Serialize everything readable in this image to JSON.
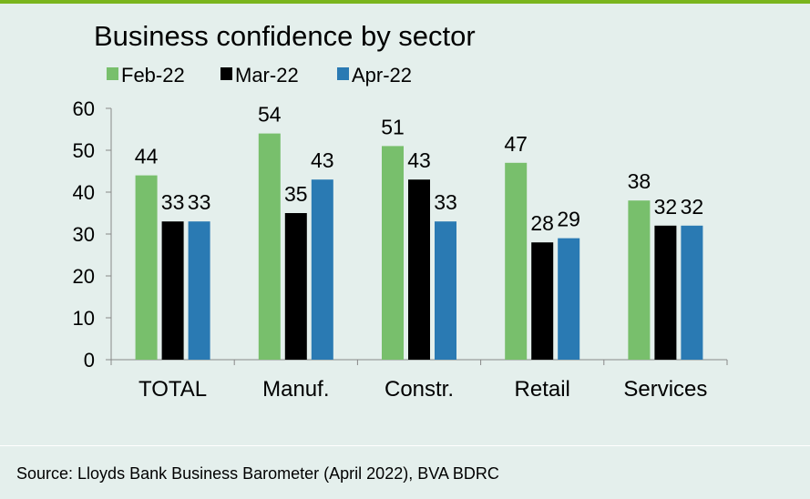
{
  "chart_data": {
    "type": "bar",
    "title": "Business confidence by sector",
    "categories": [
      "TOTAL",
      "Manuf.",
      "Constr.",
      "Retail",
      "Services"
    ],
    "series": [
      {
        "name": "Feb-22",
        "color": "#78bf6c",
        "values": [
          44,
          54,
          51,
          47,
          38
        ]
      },
      {
        "name": "Mar-22",
        "color": "#000000",
        "values": [
          33,
          35,
          43,
          28,
          32
        ]
      },
      {
        "name": "Apr-22",
        "color": "#2a7ab3",
        "values": [
          33,
          43,
          33,
          29,
          32
        ]
      }
    ],
    "xlabel": "",
    "ylabel": "",
    "ylim": [
      0,
      60
    ],
    "yticks": [
      0,
      10,
      20,
      30,
      40,
      50,
      60
    ],
    "grid": false,
    "legend": "top-left",
    "data_labels": true
  },
  "source": "Source: Lloyds Bank Business Barometer (April 2022), BVA BDRC",
  "colors": {
    "background": "#e4efec",
    "accent_rule": "#7ab51d",
    "axis": "#888888"
  }
}
